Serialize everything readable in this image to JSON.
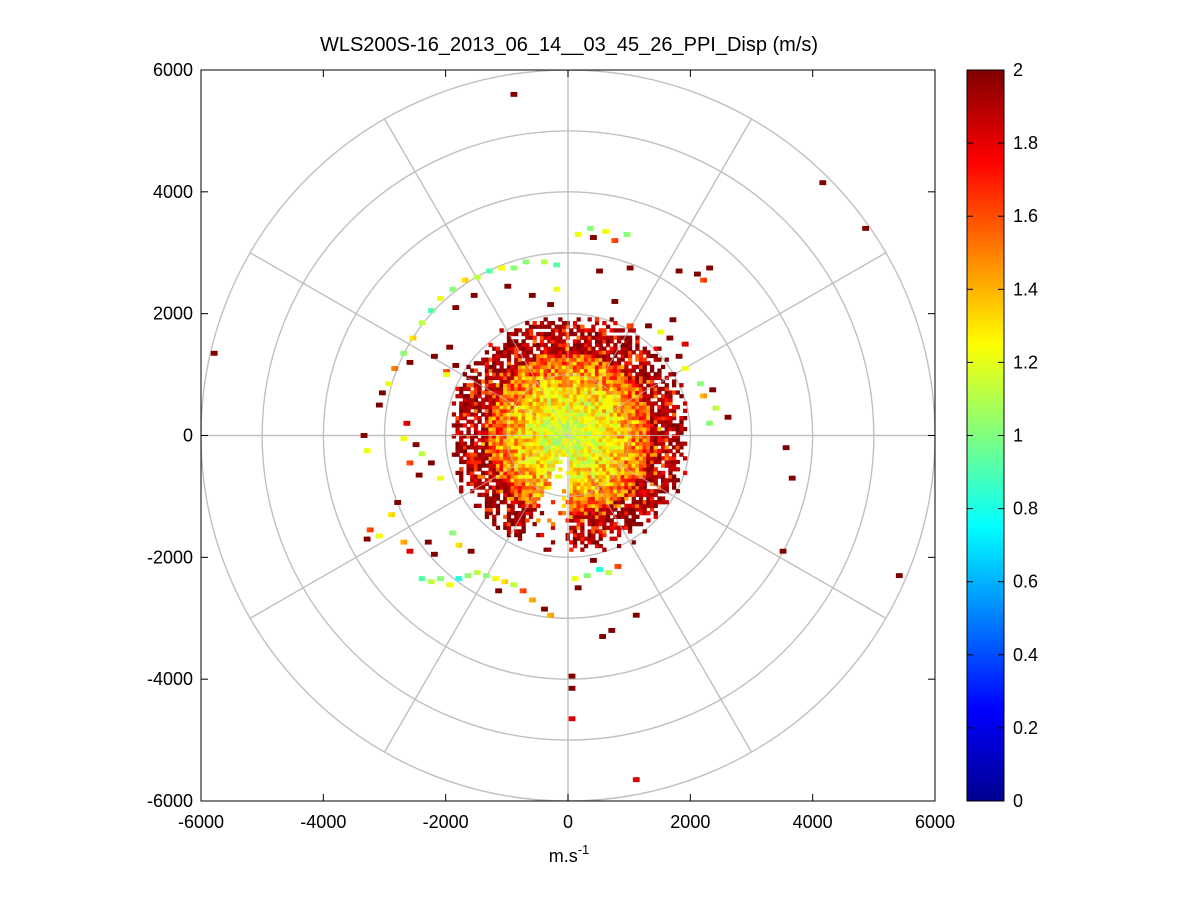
{
  "chart_data": {
    "type": "heatmap",
    "subtype": "polar-ppi",
    "title": "WLS200S-16_2013_06_14__03_45_26_PPI_Disp (m/s)",
    "xlabel_base": "m.s",
    "xlabel_exp": "-1",
    "ylabel": "",
    "xlim": [
      -6000,
      6000
    ],
    "ylim": [
      -6000,
      6000
    ],
    "xticks": [
      -6000,
      -4000,
      -2000,
      0,
      2000,
      4000,
      6000
    ],
    "yticks": [
      6000,
      4000,
      2000,
      0,
      -2000,
      -4000,
      -6000
    ],
    "xtick_labels": [
      "-6000",
      "-4000",
      "-2000",
      "0",
      "2000",
      "4000",
      "6000"
    ],
    "ytick_labels": [
      "6000",
      "4000",
      "2000",
      "0",
      "-2000",
      "-4000",
      "-6000"
    ],
    "polar_grid": {
      "ring_radii": [
        1000,
        2000,
        3000,
        4000,
        5000,
        6000
      ],
      "spoke_angles_deg": [
        0,
        30,
        60,
        90,
        120,
        150,
        180,
        210,
        240,
        270,
        300,
        330
      ]
    },
    "colorbar": {
      "colormap": "jet",
      "min": 0,
      "max": 2,
      "ticks": [
        2,
        1.8,
        1.6,
        1.4,
        1.2,
        1,
        0.8,
        0.6,
        0.4,
        0.2,
        0
      ],
      "tick_labels": [
        "2",
        "1.8",
        "1.6",
        "1.4",
        "1.2",
        "1",
        "0.8",
        "0.6",
        "0.4",
        "0.2",
        "0"
      ]
    },
    "core": {
      "center": [
        0,
        0
      ],
      "radius": 1900,
      "inner_value": 1.15,
      "outer_value": 1.95
    },
    "scatter_cells": [
      {
        "x": -900,
        "y": 5600,
        "v": 2.0
      },
      {
        "x": 4150,
        "y": 4150,
        "v": 2.0
      },
      {
        "x": 4850,
        "y": 3400,
        "v": 2.0
      },
      {
        "x": -5800,
        "y": 1350,
        "v": 2.0
      },
      {
        "x": 5400,
        "y": -2300,
        "v": 2.0
      },
      {
        "x": 3500,
        "y": -1900,
        "v": 2.0
      },
      {
        "x": 3550,
        "y": -200,
        "v": 2.0
      },
      {
        "x": 3650,
        "y": -700,
        "v": 2.0
      },
      {
        "x": 1100,
        "y": -5650,
        "v": 1.8
      },
      {
        "x": 50,
        "y": -4650,
        "v": 1.8
      },
      {
        "x": 50,
        "y": -3950,
        "v": 2.0
      },
      {
        "x": 50,
        "y": -4150,
        "v": 2.0
      },
      {
        "x": 550,
        "y": -3300,
        "v": 2.0
      },
      {
        "x": 700,
        "y": -3200,
        "v": 2.0
      },
      {
        "x": 1100,
        "y": -2950,
        "v": 2.0
      },
      {
        "x": 150,
        "y": 3300,
        "v": 1.2
      },
      {
        "x": 350,
        "y": 3400,
        "v": 1.0
      },
      {
        "x": 600,
        "y": 3350,
        "v": 1.2
      },
      {
        "x": 400,
        "y": 3250,
        "v": 2.0
      },
      {
        "x": 750,
        "y": 3200,
        "v": 1.6
      },
      {
        "x": 950,
        "y": 3300,
        "v": 1.0
      },
      {
        "x": 1000,
        "y": 2750,
        "v": 2.0
      },
      {
        "x": 1800,
        "y": 2700,
        "v": 2.0
      },
      {
        "x": 2100,
        "y": 2650,
        "v": 2.0
      },
      {
        "x": 2200,
        "y": 2550,
        "v": 1.6
      },
      {
        "x": 2300,
        "y": 2750,
        "v": 2.0
      },
      {
        "x": 500,
        "y": 2700,
        "v": 2.0
      },
      {
        "x": 750,
        "y": 2200,
        "v": 2.0
      },
      {
        "x": -1100,
        "y": 2750,
        "v": 1.2
      },
      {
        "x": -1300,
        "y": 2700,
        "v": 0.9
      },
      {
        "x": -1500,
        "y": 2600,
        "v": 1.1
      },
      {
        "x": -1700,
        "y": 2550,
        "v": 1.3
      },
      {
        "x": -1900,
        "y": 2400,
        "v": 1.0
      },
      {
        "x": -2100,
        "y": 2250,
        "v": 1.2
      },
      {
        "x": -2250,
        "y": 2050,
        "v": 0.9
      },
      {
        "x": -2400,
        "y": 1850,
        "v": 1.1
      },
      {
        "x": -2550,
        "y": 1600,
        "v": 1.3
      },
      {
        "x": -2700,
        "y": 1350,
        "v": 1.0
      },
      {
        "x": -2850,
        "y": 1100,
        "v": 1.5
      },
      {
        "x": -2950,
        "y": 850,
        "v": 1.2
      },
      {
        "x": -700,
        "y": 2850,
        "v": 1.0
      },
      {
        "x": -400,
        "y": 2850,
        "v": 1.1
      },
      {
        "x": -200,
        "y": 2800,
        "v": 0.9
      },
      {
        "x": -900,
        "y": 2750,
        "v": 1.0
      },
      {
        "x": -1000,
        "y": 2450,
        "v": 2.0
      },
      {
        "x": -600,
        "y": 2300,
        "v": 2.0
      },
      {
        "x": -200,
        "y": 2400,
        "v": 1.2
      },
      {
        "x": -300,
        "y": 2150,
        "v": 2.0
      },
      {
        "x": -1550,
        "y": 2300,
        "v": 2.0
      },
      {
        "x": -1850,
        "y": 2100,
        "v": 2.0
      },
      {
        "x": -2200,
        "y": 1300,
        "v": 2.0
      },
      {
        "x": -2000,
        "y": 1050,
        "v": 1.6
      },
      {
        "x": -2600,
        "y": 1200,
        "v": 2.0
      },
      {
        "x": -1950,
        "y": 1450,
        "v": 2.0
      },
      {
        "x": -2000,
        "y": 1000,
        "v": 1.2
      },
      {
        "x": -1850,
        "y": 1150,
        "v": 2.0
      },
      {
        "x": -3100,
        "y": 500,
        "v": 2.0
      },
      {
        "x": -3050,
        "y": 700,
        "v": 2.0
      },
      {
        "x": -3350,
        "y": 0,
        "v": 2.0
      },
      {
        "x": -3300,
        "y": -250,
        "v": 1.2
      },
      {
        "x": -2650,
        "y": 200,
        "v": 1.8
      },
      {
        "x": -2700,
        "y": -50,
        "v": 1.2
      },
      {
        "x": -2500,
        "y": -150,
        "v": 2.0
      },
      {
        "x": -2600,
        "y": -450,
        "v": 1.6
      },
      {
        "x": -2400,
        "y": -300,
        "v": 1.1
      },
      {
        "x": -2250,
        "y": -450,
        "v": 2.0
      },
      {
        "x": -2100,
        "y": -700,
        "v": 1.2
      },
      {
        "x": -2450,
        "y": -650,
        "v": 2.0
      },
      {
        "x": -2800,
        "y": -1100,
        "v": 2.0
      },
      {
        "x": -2900,
        "y": -1300,
        "v": 1.3
      },
      {
        "x": -3250,
        "y": -1550,
        "v": 1.6
      },
      {
        "x": -3300,
        "y": -1700,
        "v": 2.0
      },
      {
        "x": -3100,
        "y": -1650,
        "v": 1.2
      },
      {
        "x": -2700,
        "y": -1750,
        "v": 1.4
      },
      {
        "x": -2600,
        "y": -1900,
        "v": 1.8
      },
      {
        "x": -2300,
        "y": -1750,
        "v": 2.0
      },
      {
        "x": -2200,
        "y": -1950,
        "v": 2.0
      },
      {
        "x": -1900,
        "y": -1600,
        "v": 1.0
      },
      {
        "x": -1800,
        "y": -1800,
        "v": 1.3
      },
      {
        "x": -1600,
        "y": -1900,
        "v": 2.0
      },
      {
        "x": -2400,
        "y": -2350,
        "v": 0.9
      },
      {
        "x": -2250,
        "y": -2400,
        "v": 1.1
      },
      {
        "x": -2100,
        "y": -2350,
        "v": 1.0
      },
      {
        "x": -1950,
        "y": -2450,
        "v": 1.2
      },
      {
        "x": -1800,
        "y": -2350,
        "v": 0.8
      },
      {
        "x": -1650,
        "y": -2300,
        "v": 1.0
      },
      {
        "x": -1500,
        "y": -2250,
        "v": 1.1
      },
      {
        "x": -1350,
        "y": -2300,
        "v": 1.0
      },
      {
        "x": -1200,
        "y": -2350,
        "v": 1.2
      },
      {
        "x": -1050,
        "y": -2400,
        "v": 1.3
      },
      {
        "x": -900,
        "y": -2450,
        "v": 1.1
      },
      {
        "x": -750,
        "y": -2550,
        "v": 1.6
      },
      {
        "x": -600,
        "y": -2700,
        "v": 1.4
      },
      {
        "x": -400,
        "y": -2850,
        "v": 2.0
      },
      {
        "x": -300,
        "y": -2950,
        "v": 1.4
      },
      {
        "x": -1150,
        "y": -2550,
        "v": 2.0
      },
      {
        "x": 100,
        "y": -2350,
        "v": 1.2
      },
      {
        "x": 300,
        "y": -2300,
        "v": 1.0
      },
      {
        "x": 500,
        "y": -2200,
        "v": 0.8
      },
      {
        "x": 650,
        "y": -2250,
        "v": 1.1
      },
      {
        "x": 800,
        "y": -2150,
        "v": 1.6
      },
      {
        "x": 400,
        "y": -2050,
        "v": 2.0
      },
      {
        "x": 150,
        "y": -2500,
        "v": 2.0
      },
      {
        "x": 1800,
        "y": 1300,
        "v": 2.0
      },
      {
        "x": 1900,
        "y": 1100,
        "v": 1.2
      },
      {
        "x": 2150,
        "y": 850,
        "v": 1.0
      },
      {
        "x": 2200,
        "y": 650,
        "v": 1.4
      },
      {
        "x": 2350,
        "y": 750,
        "v": 2.0
      },
      {
        "x": 2400,
        "y": 450,
        "v": 1.1
      },
      {
        "x": 2600,
        "y": 300,
        "v": 2.0
      },
      {
        "x": 2300,
        "y": 200,
        "v": 1.0
      },
      {
        "x": 1900,
        "y": 1500,
        "v": 1.8
      },
      {
        "x": 1650,
        "y": 1600,
        "v": 2.0
      },
      {
        "x": 1500,
        "y": 1700,
        "v": 1.2
      },
      {
        "x": 1700,
        "y": 1900,
        "v": 2.0
      },
      {
        "x": 1300,
        "y": 1800,
        "v": 2.0
      },
      {
        "x": 1000,
        "y": 1800,
        "v": 1.6
      }
    ]
  }
}
